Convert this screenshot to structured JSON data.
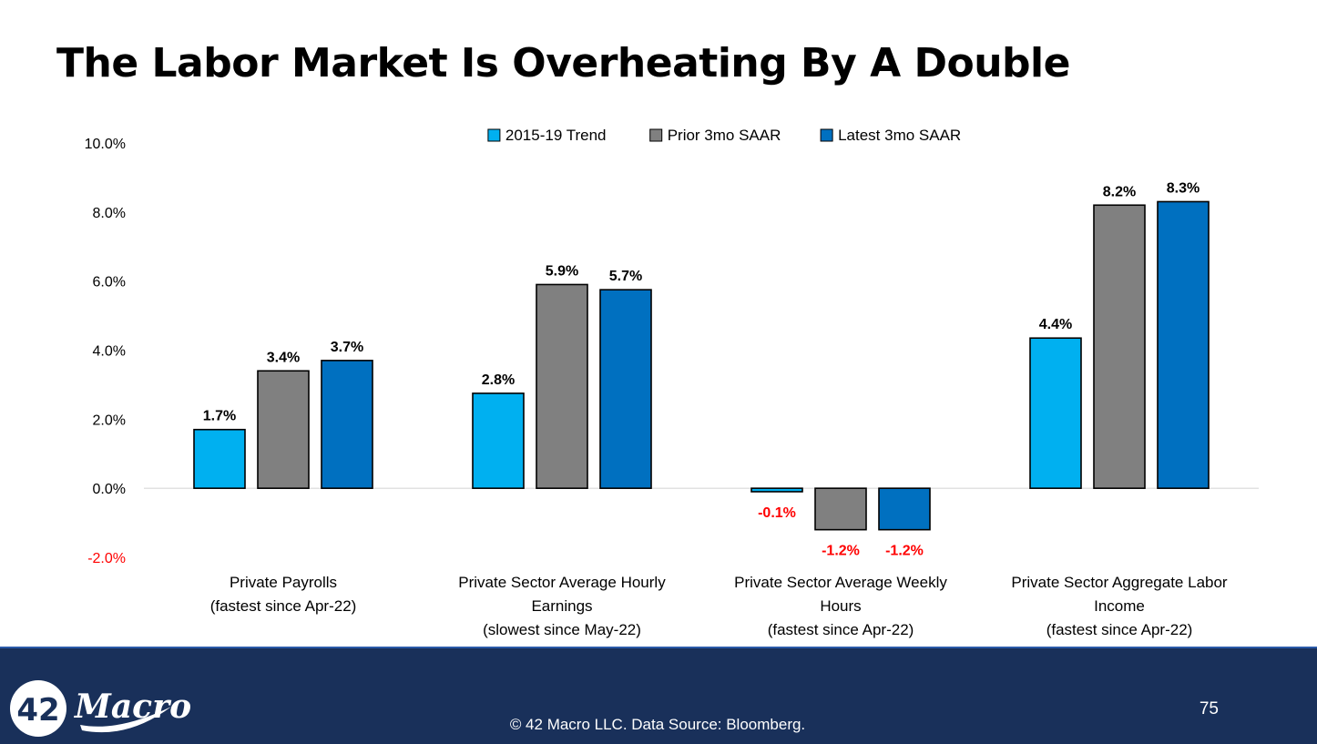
{
  "title": "The Labor Market Is Overheating By A Double",
  "chart_data": {
    "type": "bar",
    "categories": [
      [
        "Private Payrolls",
        "(fastest since Apr-22)"
      ],
      [
        "Private Sector Average Hourly",
        "Earnings",
        "(slowest since May-22)"
      ],
      [
        "Private Sector Average Weekly",
        "Hours",
        "(fastest since Apr-22)"
      ],
      [
        "Private Sector Aggregate Labor",
        "Income",
        "(fastest since Apr-22)"
      ]
    ],
    "series": [
      {
        "name": "2015-19 Trend",
        "color": "#00b0f0",
        "values": [
          1.7,
          2.75,
          -0.1,
          4.35
        ],
        "labels": [
          "1.7%",
          "2.8%",
          "-0.1%",
          "4.4%"
        ]
      },
      {
        "name": "Prior 3mo SAAR",
        "color": "#808080",
        "values": [
          3.4,
          5.9,
          -1.2,
          8.2
        ],
        "labels": [
          "3.4%",
          "5.9%",
          "-1.2%",
          "8.2%"
        ]
      },
      {
        "name": "Latest 3mo SAAR",
        "color": "#0070c0",
        "values": [
          3.7,
          5.75,
          -1.2,
          8.3
        ],
        "labels": [
          "3.7%",
          "5.7%",
          "-1.2%",
          "8.3%"
        ]
      }
    ],
    "ylim": [
      -2.0,
      10.0
    ],
    "yticks": [
      -2.0,
      0.0,
      2.0,
      4.0,
      6.0,
      8.0,
      10.0
    ],
    "ytick_labels": [
      "-2.0%",
      "0.0%",
      "2.0%",
      "4.0%",
      "6.0%",
      "8.0%",
      "10.0%"
    ],
    "negative_label_color": "#ff0000",
    "legend_position": "top-center"
  },
  "footer": {
    "logo_number": "42",
    "logo_word": "Macro",
    "copyright": "© 42 Macro LLC. Data Source: Bloomberg.",
    "page_number": "75"
  },
  "colors": {
    "footer_bg": "#19305a",
    "footer_text": "#ffffff"
  }
}
